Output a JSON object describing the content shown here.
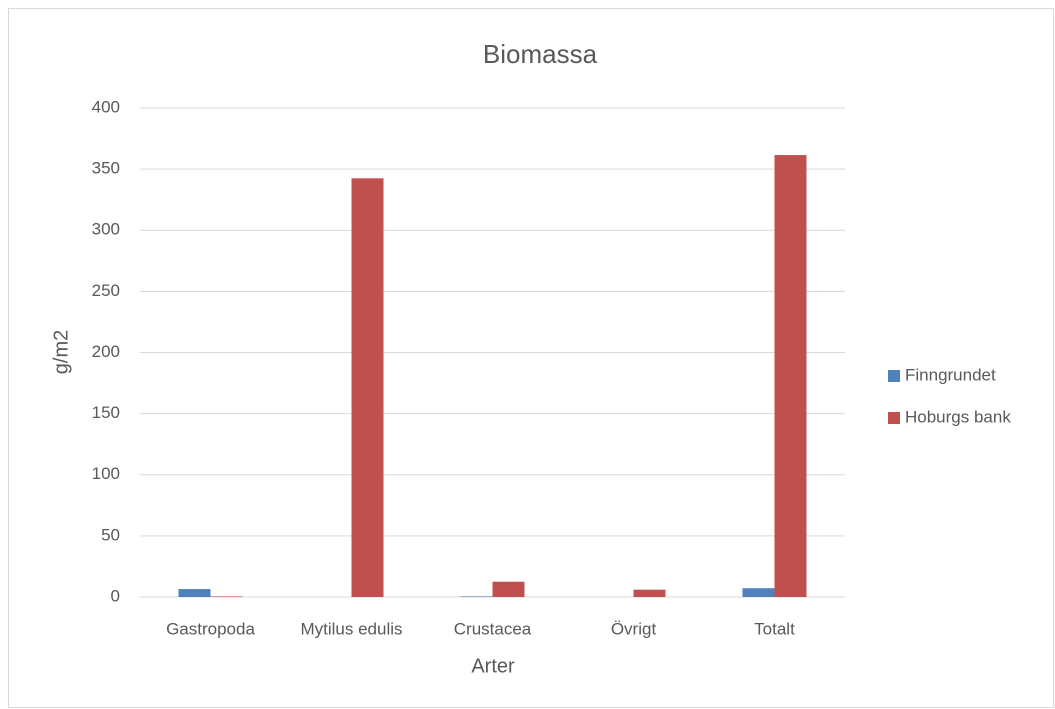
{
  "chart_data": {
    "type": "bar",
    "title": "Biomassa",
    "x_label": "Arter",
    "y_label": "g/m2",
    "categories": [
      "Gastropoda",
      "Mytilus edulis",
      "Crustacea",
      "Övrigt",
      "Totalt"
    ],
    "series": [
      {
        "name": "Finngrundet",
        "color": "#4f81bd",
        "values": [
          6.5,
          0,
          0.5,
          0,
          7.2
        ]
      },
      {
        "name": "Hoburgs bank",
        "color": "#c0504d",
        "values": [
          0.5,
          342.5,
          12.5,
          6,
          361.5
        ]
      }
    ],
    "ylim": [
      0,
      400
    ],
    "yticks": [
      0,
      50,
      100,
      150,
      200,
      250,
      300,
      350,
      400
    ],
    "grid": true,
    "legend": "right"
  }
}
